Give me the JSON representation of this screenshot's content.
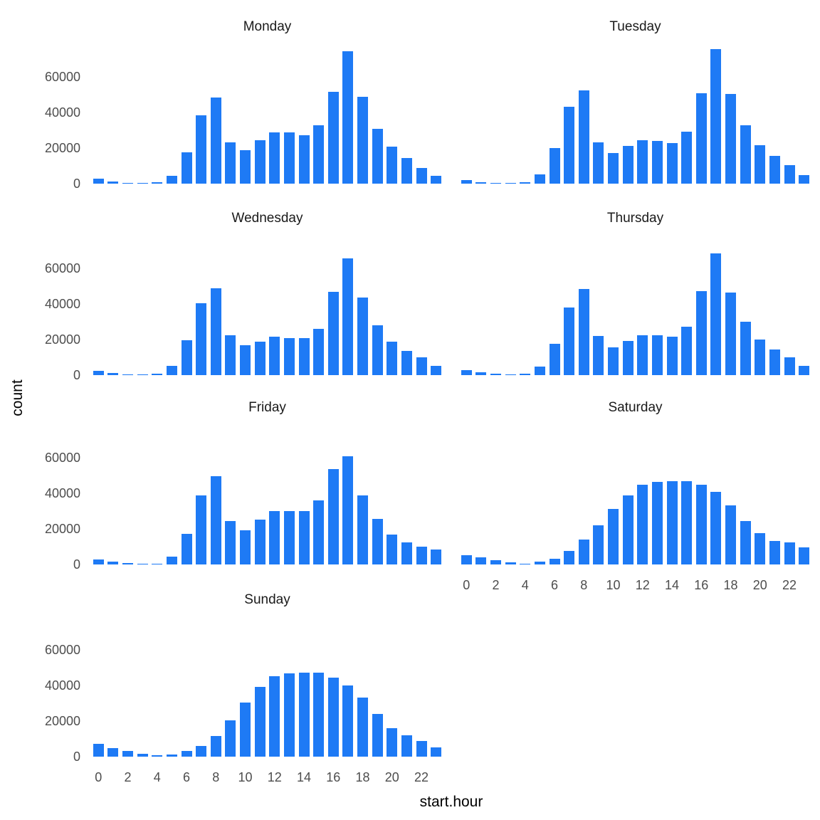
{
  "figure": {
    "y_axis_title": "count",
    "x_axis_title": "start.hour",
    "bar_color": "#1e7af5",
    "tick_text_color": "#4d4d4d",
    "facet_title_color": "#1a1a1a",
    "background_color": "#ffffff"
  },
  "chart_data": {
    "type": "bar",
    "title": "",
    "xlabel": "start.hour",
    "ylabel": "count",
    "grid": "off",
    "legend": "none",
    "facets_layout": "4 rows x 2 columns, faceted by weekday",
    "x": [
      0,
      1,
      2,
      3,
      4,
      5,
      6,
      7,
      8,
      9,
      10,
      11,
      12,
      13,
      14,
      15,
      16,
      17,
      18,
      19,
      20,
      21,
      22,
      23
    ],
    "x_tick_labels": [
      "0",
      "2",
      "4",
      "6",
      "8",
      "10",
      "12",
      "14",
      "16",
      "18",
      "20",
      "22"
    ],
    "x_ticks": [
      0,
      2,
      4,
      6,
      8,
      10,
      12,
      14,
      16,
      18,
      20,
      22
    ],
    "y_tick_labels": [
      "0",
      "20000",
      "40000",
      "60000"
    ],
    "y_ticks": [
      0,
      20000,
      40000,
      60000
    ],
    "ylim": [
      0,
      80000
    ],
    "panels": [
      {
        "title": "Monday",
        "show_x_axis": false,
        "values": [
          3000,
          1200,
          600,
          300,
          700,
          4300,
          17600,
          38500,
          48300,
          23200,
          18900,
          24500,
          28700,
          28700,
          27300,
          32900,
          51600,
          74300,
          48700,
          30900,
          20700,
          14300,
          8900,
          4500
        ]
      },
      {
        "title": "Tuesday",
        "show_x_axis": false,
        "values": [
          2200,
          900,
          600,
          500,
          700,
          5100,
          20000,
          43300,
          52400,
          23300,
          17100,
          21100,
          24400,
          24000,
          22900,
          29100,
          50700,
          75600,
          50400,
          32900,
          21700,
          15700,
          10400,
          4700
        ]
      },
      {
        "title": "Wednesday",
        "show_x_axis": false,
        "values": [
          2400,
          1400,
          600,
          300,
          700,
          5400,
          19500,
          40500,
          49000,
          22500,
          16800,
          19000,
          21800,
          21000,
          20700,
          26000,
          47000,
          65800,
          43800,
          28200,
          18800,
          13800,
          9900,
          5200
        ]
      },
      {
        "title": "Thursday",
        "show_x_axis": false,
        "values": [
          2700,
          1500,
          700,
          400,
          800,
          4700,
          17800,
          37900,
          48600,
          22100,
          15800,
          19300,
          22300,
          22300,
          21700,
          27400,
          47200,
          68600,
          46300,
          30200,
          20200,
          14400,
          10000,
          5300
        ]
      },
      {
        "title": "Friday",
        "show_x_axis": false,
        "values": [
          2700,
          1600,
          700,
          300,
          600,
          4600,
          17200,
          38800,
          49500,
          24500,
          19100,
          25100,
          30100,
          30100,
          30100,
          36100,
          53800,
          61000,
          38900,
          25600,
          16700,
          12300,
          10200,
          8300
        ]
      },
      {
        "title": "Saturday",
        "show_x_axis": true,
        "values": [
          5100,
          3900,
          2400,
          1200,
          600,
          1800,
          3200,
          7800,
          13900,
          22200,
          31300,
          39000,
          45000,
          46300,
          46800,
          46800,
          45000,
          40900,
          33200,
          24400,
          17600,
          13400,
          12300,
          9800
        ]
      },
      {
        "title": "Sunday",
        "show_x_axis": true,
        "values": [
          7300,
          4800,
          3100,
          1700,
          800,
          1100,
          3300,
          6000,
          11700,
          20300,
          30400,
          39300,
          45100,
          46800,
          47300,
          47100,
          44400,
          40200,
          33100,
          24200,
          16000,
          11900,
          8900,
          5200
        ]
      }
    ]
  }
}
